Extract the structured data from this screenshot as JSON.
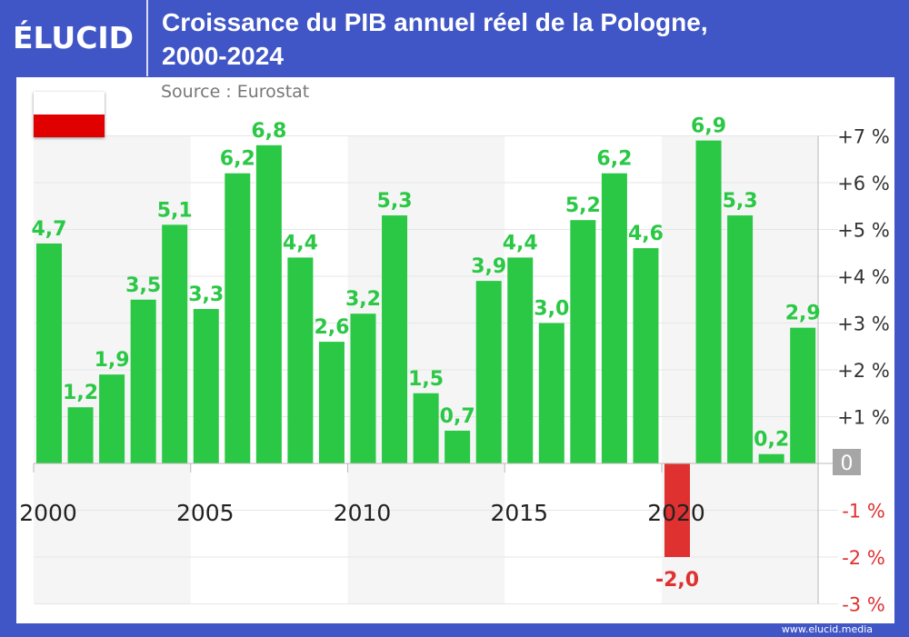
{
  "brand": "ÉLUCID",
  "title_line1": "Croissance du PIB annuel réel de la Pologne,",
  "title_line2": "2000-2024",
  "source": "Source : Eurostat",
  "footer": "www.elucid.media",
  "colors": {
    "frame": "#4056c6",
    "positive": "#2ac845",
    "negative": "#e03131",
    "zero_badge": "#a6a6a6",
    "band": "#f5f5f5"
  },
  "chart_data": {
    "type": "bar",
    "title": "Croissance du PIB annuel réel de la Pologne, 2000-2024",
    "categories": [
      "2000",
      "2001",
      "2002",
      "2003",
      "2004",
      "2005",
      "2006",
      "2007",
      "2008",
      "2009",
      "2010",
      "2011",
      "2012",
      "2013",
      "2014",
      "2015",
      "2016",
      "2017",
      "2018",
      "2019",
      "2020",
      "2021",
      "2022",
      "2023",
      "2024"
    ],
    "values": [
      4.7,
      1.2,
      1.9,
      3.5,
      5.1,
      3.3,
      6.2,
      6.8,
      4.4,
      2.6,
      3.2,
      5.3,
      1.5,
      0.7,
      3.9,
      4.4,
      3.0,
      5.2,
      6.2,
      4.6,
      -2.0,
      6.9,
      5.3,
      0.2,
      2.9
    ],
    "data_labels": [
      "4,7",
      "1,2",
      "1,9",
      "3,5",
      "5,1",
      "3,3",
      "6,2",
      "6,8",
      "4,4",
      "2,6",
      "3,2",
      "5,3",
      "1,5",
      "0,7",
      "3,9",
      "4,4",
      "3,0",
      "5,2",
      "6,2",
      "4,6",
      "-2,0",
      "6,9",
      "5,3",
      "0,2",
      "2,9"
    ],
    "x_tick_labels": [
      "2000",
      "2005",
      "2010",
      "2015",
      "2020"
    ],
    "y_tick_values": [
      7,
      6,
      5,
      4,
      3,
      2,
      1,
      0,
      -1,
      -2,
      -3
    ],
    "y_tick_labels": [
      "+7 %",
      "+6 %",
      "+5 %",
      "+4 %",
      "+3 %",
      "+2 %",
      "+1 %",
      "0",
      "-1 %",
      "-2 %",
      "-3 %"
    ],
    "ylim": [
      -3,
      7
    ],
    "y_axis_side": "right",
    "grid": true
  }
}
